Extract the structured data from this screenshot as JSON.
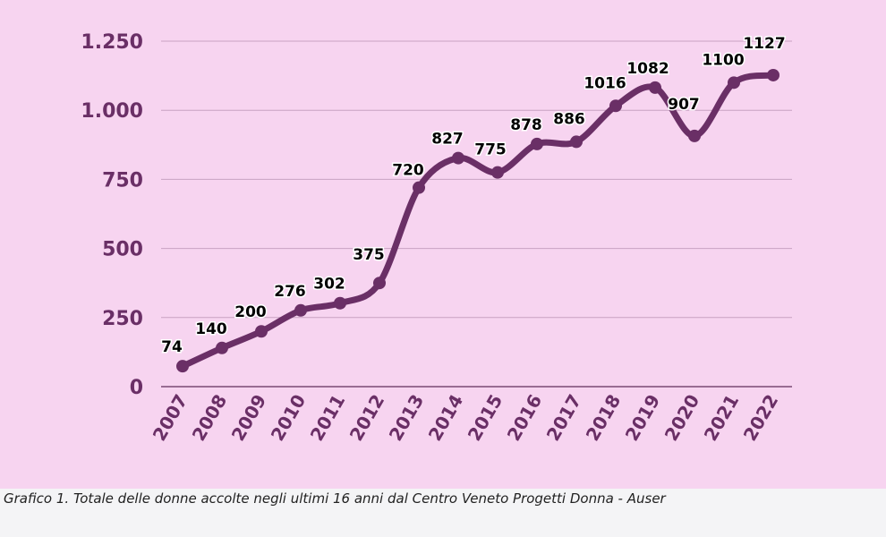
{
  "caption": "Grafico 1. Totale delle donne accolte negli ultimi 16 anni dal Centro Veneto Progetti Donna - Auser",
  "colors": {
    "background": "#f7d4f0",
    "line": "#6a2f66",
    "gridline": "#c8a2c2",
    "tick_text": "#6a2f66",
    "data_label": "#000000"
  },
  "chart_data": {
    "type": "line",
    "title": "",
    "xlabel": "",
    "ylabel": "",
    "categories": [
      "2007",
      "2008",
      "2009",
      "2010",
      "2011",
      "2012",
      "2013",
      "2014",
      "2015",
      "2016",
      "2017",
      "2018",
      "2019",
      "2020",
      "2021",
      "2022"
    ],
    "series": [
      {
        "values": [
          74,
          140,
          200,
          276,
          302,
          375,
          720,
          827,
          775,
          878,
          886,
          1016,
          1082,
          907,
          1100,
          1127
        ],
        "labels": [
          "74",
          "140",
          "200",
          "276",
          "302",
          "375",
          "720",
          "827",
          "775",
          "878",
          "886",
          "1016",
          "1082",
          "907",
          "1100",
          "1127"
        ]
      }
    ],
    "ylim": [
      0,
      1250
    ],
    "yticks": [
      0,
      250,
      500,
      750,
      1000,
      1250
    ],
    "ytick_labels": [
      "0",
      "250",
      "500",
      "750",
      "1.000",
      "1.250"
    ],
    "grid": true,
    "legend": "none",
    "smooth": true,
    "markers": true
  }
}
